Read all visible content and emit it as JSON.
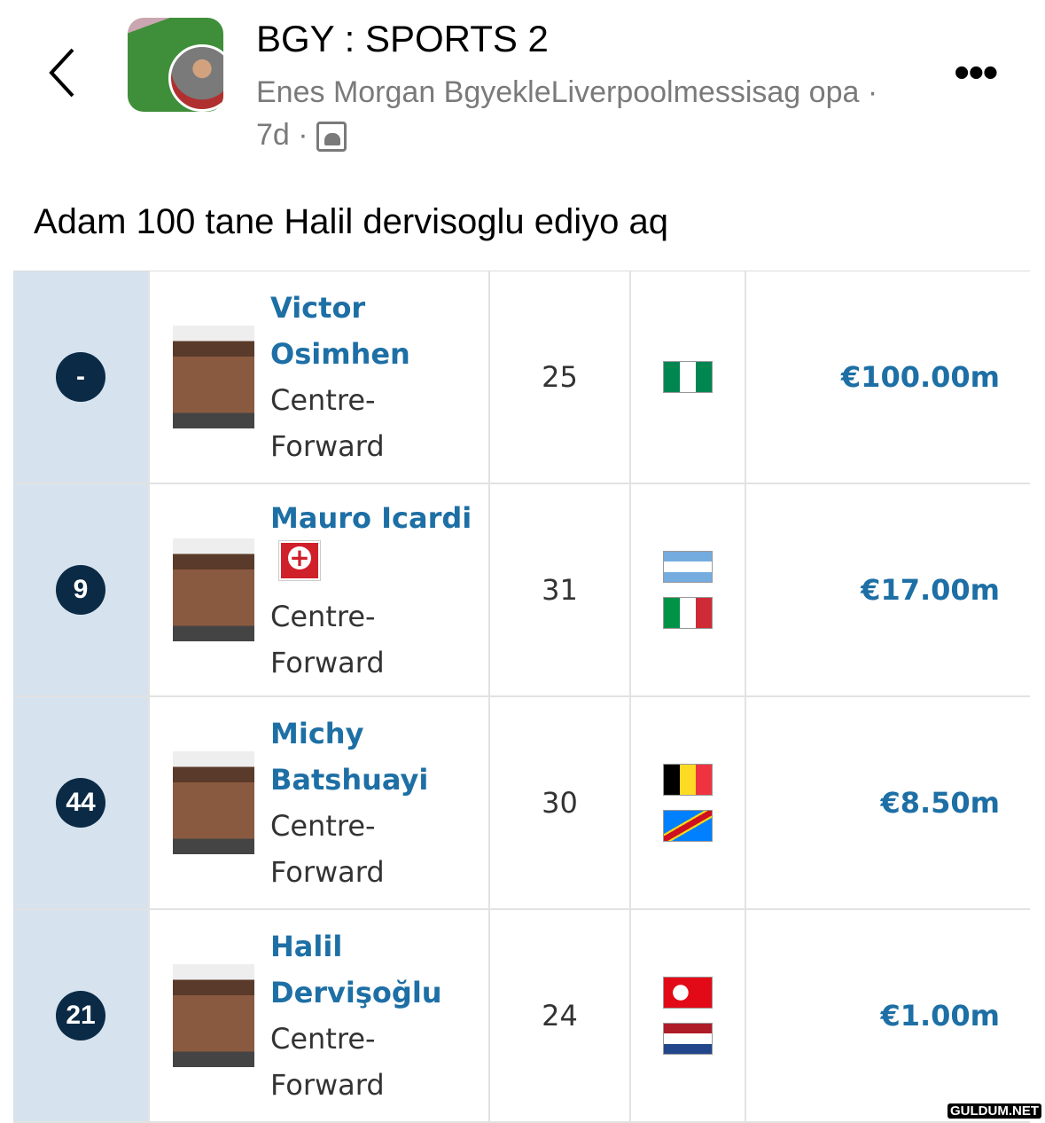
{
  "header": {
    "title": "BGY : SPORTS 2",
    "author": "Enes Morgan BgyekleLiverpoolmessisag opa",
    "time": "7d",
    "back_icon": "chevron-left-icon",
    "more_icon": "ellipsis-icon",
    "audience_icon": "group-icon"
  },
  "post": {
    "caption": "Adam 100 tane Halil dervisoglu ediyo aq"
  },
  "players": [
    {
      "number": "-",
      "name": "Victor Osimhen",
      "position": "Centre-Forward",
      "age": "25",
      "flags": [
        "nigeria"
      ],
      "value": "€100.00m",
      "captain": false
    },
    {
      "number": "9",
      "name": "Mauro Icardi",
      "position": "Centre-Forward",
      "age": "31",
      "flags": [
        "argentina",
        "italy"
      ],
      "value": "€17.00m",
      "captain": true
    },
    {
      "number": "44",
      "name": "Michy Batshuayi",
      "position": "Centre-Forward",
      "age": "30",
      "flags": [
        "belgium",
        "dr-congo"
      ],
      "value": "€8.50m",
      "captain": false
    },
    {
      "number": "21",
      "name": "Halil Dervişoğlu",
      "position": "Centre-Forward",
      "age": "24",
      "flags": [
        "turkey",
        "netherlands"
      ],
      "value": "€1.00m",
      "captain": false
    }
  ],
  "colors": {
    "link": "#1d6fa5",
    "badge": "#0b2a45",
    "side": "#d6e3ee"
  },
  "watermark": "GULDUM.NET"
}
